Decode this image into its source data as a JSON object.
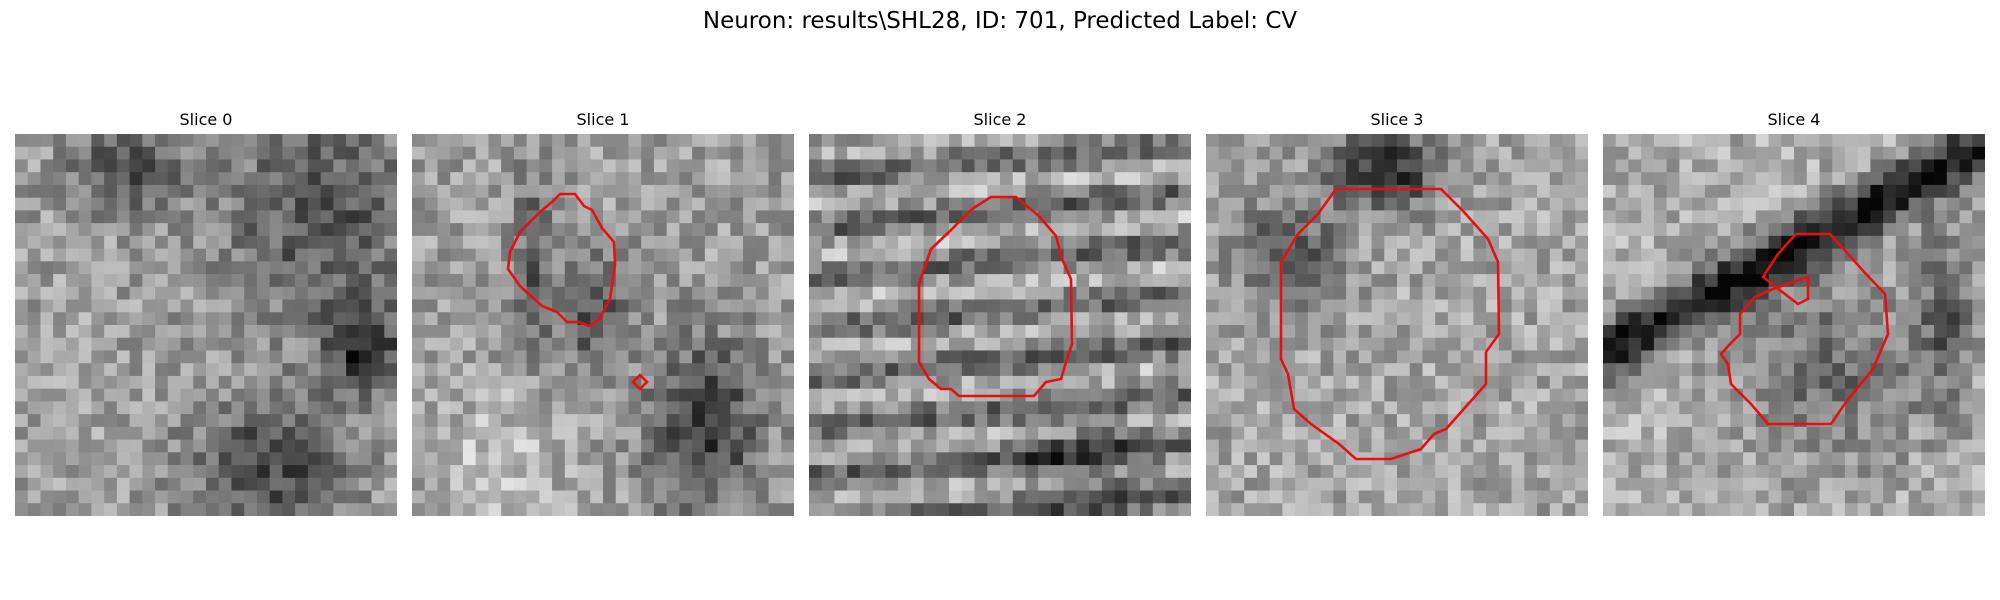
{
  "figure": {
    "title": "Neuron: results\\SHL28, ID: 701, Predicted Label: CV",
    "contour_color": "#e80f0f"
  },
  "panels": [
    {
      "title": "Slice 0",
      "has_contour": false
    },
    {
      "title": "Slice 1",
      "has_contour": true
    },
    {
      "title": "Slice 2",
      "has_contour": true
    },
    {
      "title": "Slice 3",
      "has_contour": true
    },
    {
      "title": "Slice 4",
      "has_contour": true
    }
  ]
}
